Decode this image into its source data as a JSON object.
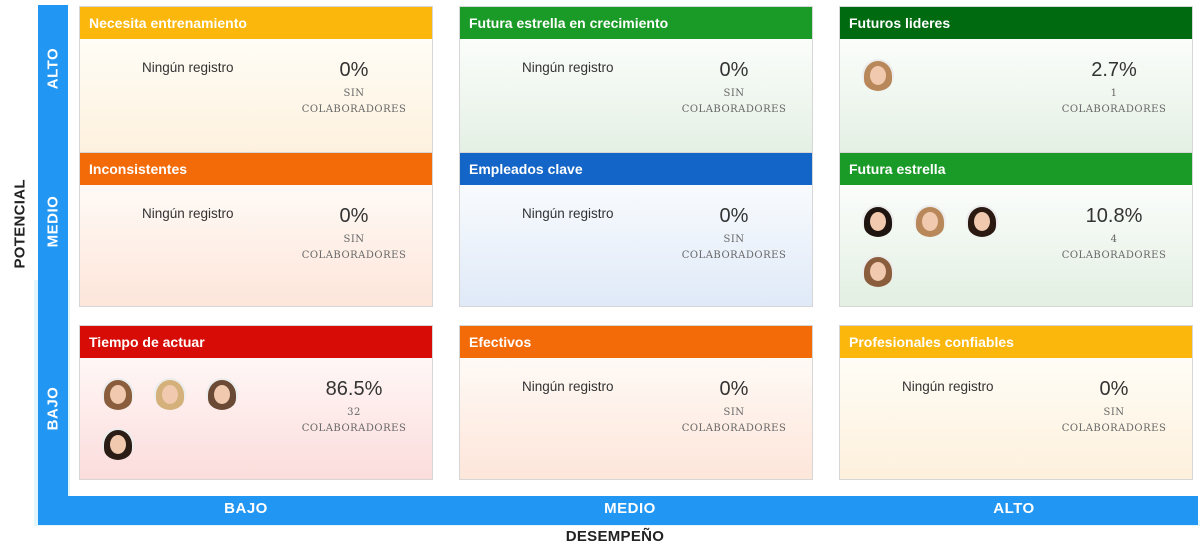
{
  "axes": {
    "y_title": "POTENCIAL",
    "x_title": "DESEMPEÑO",
    "y_levels": [
      "ALTO",
      "MEDIO",
      "BAJO"
    ],
    "x_levels": [
      "BAJO",
      "MEDIO",
      "ALTO"
    ],
    "color": "#2196f3"
  },
  "common": {
    "empty_label": "Ningún registro",
    "collab_label": "COLABORADORES"
  },
  "cells": [
    {
      "title": "Necesita entrenamiento",
      "header_color": "#fbb70b",
      "body_gradient": [
        "#fffdf6",
        "#fdf0dc"
      ],
      "percent": "0%",
      "count": "SIN",
      "avatars": []
    },
    {
      "title": "Futura estrella en crecimiento",
      "header_color": "#1a9a26",
      "body_gradient": [
        "#fbfdfb",
        "#e2efe2"
      ],
      "percent": "0%",
      "count": "SIN",
      "avatars": []
    },
    {
      "title": "Futuros lideres",
      "header_color": "#006a10",
      "body_gradient": [
        "#fbfdfb",
        "#e2efe2"
      ],
      "percent": "2.7%",
      "count": "1",
      "avatars": [
        "avatar-person-1"
      ]
    },
    {
      "title": "Inconsistentes",
      "header_color": "#f36b09",
      "body_gradient": [
        "#fffaf6",
        "#fde5d9"
      ],
      "percent": "0%",
      "count": "SIN",
      "avatars": []
    },
    {
      "title": "Empleados clave",
      "header_color": "#1366c7",
      "body_gradient": [
        "#f8fbfe",
        "#dfe9f7"
      ],
      "percent": "0%",
      "count": "SIN",
      "avatars": []
    },
    {
      "title": "Futura estrella",
      "header_color": "#1a9a26",
      "body_gradient": [
        "#fbfdfb",
        "#e2efe2"
      ],
      "percent": "10.8%",
      "count": "4",
      "avatars": [
        "avatar-person-2",
        "avatar-person-3",
        "avatar-person-4",
        "avatar-person-5"
      ]
    },
    {
      "title": "Tiempo de actuar",
      "header_color": "#d70c07",
      "body_gradient": [
        "#fff7f6",
        "#fbdcdb"
      ],
      "percent": "86.5%",
      "count": "32",
      "avatars": [
        "avatar-person-6",
        "avatar-person-7",
        "avatar-person-8",
        "avatar-person-9"
      ]
    },
    {
      "title": "Efectivos",
      "header_color": "#f36b09",
      "body_gradient": [
        "#fffaf6",
        "#fde5d9"
      ],
      "percent": "0%",
      "count": "SIN",
      "avatars": []
    },
    {
      "title": "Profesionales confiables",
      "header_color": "#fbb70b",
      "body_gradient": [
        "#fffdf6",
        "#fdf0dc"
      ],
      "percent": "0%",
      "count": "SIN",
      "avatars": []
    }
  ]
}
